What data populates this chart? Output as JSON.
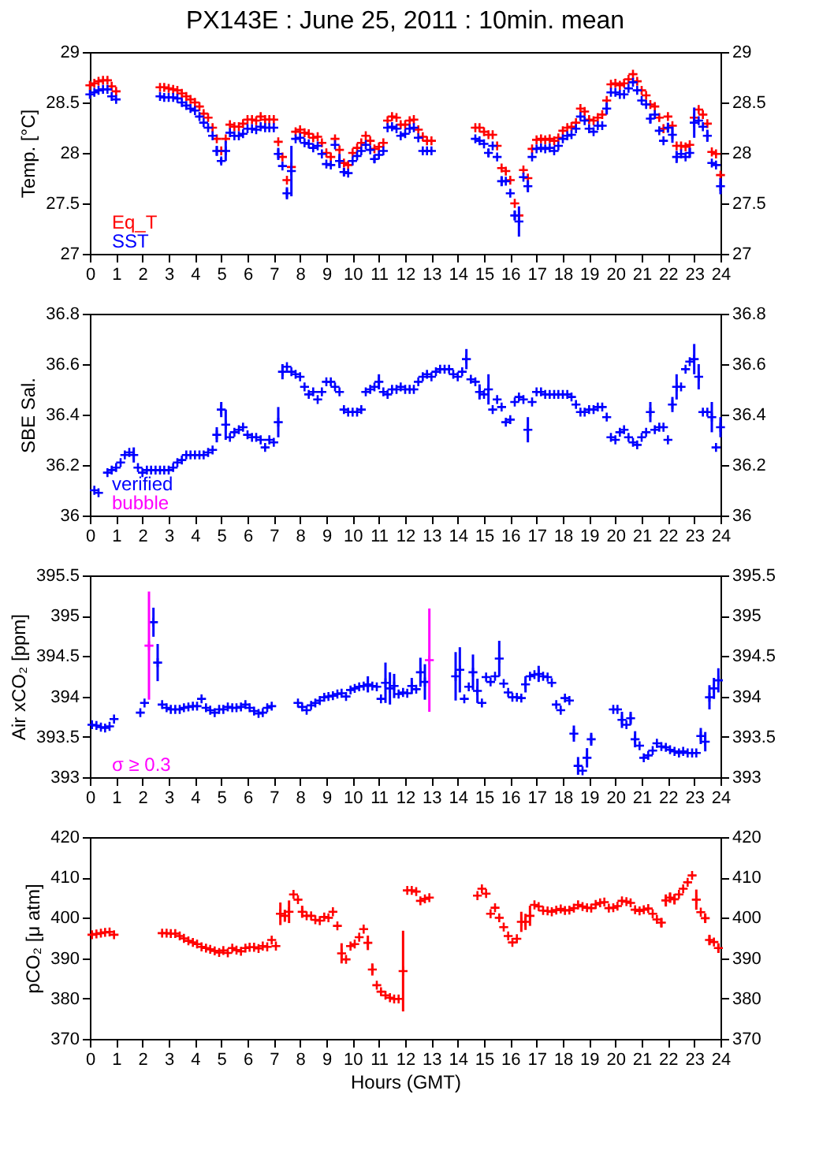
{
  "chart_data": [
    {
      "type": "scatter",
      "title": "PX143E : June 25, 2011 : 10min. mean",
      "ylabel": "Temp. [°C]",
      "xlim": [
        0,
        24
      ],
      "xticks": [
        0,
        1,
        2,
        3,
        4,
        5,
        6,
        7,
        8,
        9,
        10,
        11,
        12,
        13,
        14,
        15,
        16,
        17,
        18,
        19,
        20,
        21,
        22,
        23,
        24
      ],
      "ylim": [
        27,
        29
      ],
      "yticks": [
        27,
        27.5,
        28,
        28.5,
        29
      ],
      "y2lim": [
        27,
        29
      ],
      "y2ticks": [
        27,
        27.5,
        28,
        28.5,
        29
      ],
      "legend": "bottom left",
      "marker": "cross",
      "x": [
        0,
        0.17,
        0.33,
        0.5,
        0.67,
        0.83,
        1,
        2.67,
        2.83,
        3,
        3.17,
        3.33,
        3.5,
        3.67,
        3.83,
        4,
        4.17,
        4.33,
        4.5,
        4.67,
        4.83,
        5,
        5.17,
        5.33,
        5.5,
        5.67,
        5.83,
        6,
        6.17,
        6.33,
        6.5,
        6.67,
        6.83,
        7,
        7.17,
        7.33,
        7.5,
        7.67,
        7.83,
        8,
        8.17,
        8.33,
        8.5,
        8.67,
        8.83,
        9,
        9.17,
        9.33,
        9.5,
        9.67,
        9.83,
        10,
        10.17,
        10.33,
        10.5,
        10.67,
        10.83,
        11,
        11.17,
        11.33,
        11.5,
        11.67,
        11.83,
        12,
        12.17,
        12.33,
        12.5,
        12.67,
        12.83,
        13,
        14.67,
        14.83,
        15,
        15.17,
        15.33,
        15.5,
        15.67,
        15.83,
        16,
        16.17,
        16.33,
        16.5,
        16.67,
        16.83,
        17,
        17.17,
        17.33,
        17.5,
        17.67,
        17.83,
        18,
        18.17,
        18.33,
        18.5,
        18.67,
        18.83,
        19,
        19.17,
        19.33,
        19.5,
        19.67,
        19.83,
        20,
        20.17,
        20.33,
        20.5,
        20.67,
        20.83,
        21,
        21.17,
        21.33,
        21.5,
        21.67,
        21.83,
        22,
        22.17,
        22.33,
        22.5,
        22.67,
        22.83,
        23,
        23.17,
        23.33,
        23.5,
        23.67,
        23.83,
        24
      ],
      "series": [
        {
          "name": "Eq_T",
          "color": "#ff0000",
          "values": [
            28.67,
            28.69,
            28.71,
            28.72,
            28.72,
            28.66,
            28.61,
            28.65,
            28.65,
            28.64,
            28.63,
            28.62,
            28.59,
            28.56,
            28.53,
            28.5,
            28.46,
            28.39,
            28.35,
            28.25,
            28.14,
            28.02,
            28.14,
            28.28,
            28.26,
            28.26,
            28.29,
            28.33,
            28.33,
            28.32,
            28.36,
            28.33,
            28.33,
            28.33,
            28.11,
            27.96,
            27.73,
            27.86,
            28.21,
            28.23,
            28.2,
            28.19,
            28.15,
            28.16,
            28.1,
            28.0,
            27.96,
            28.14,
            28.03,
            27.9,
            27.88,
            28.0,
            28.05,
            28.1,
            28.17,
            28.12,
            28.04,
            28.06,
            28.1,
            28.32,
            28.36,
            28.35,
            28.28,
            28.28,
            28.32,
            28.33,
            28.23,
            28.16,
            28.12,
            28.12,
            28.25,
            28.25,
            28.21,
            28.18,
            28.18,
            28.07,
            27.85,
            27.82,
            27.73,
            27.5,
            27.38,
            27.83,
            27.75,
            28.04,
            28.13,
            28.14,
            28.13,
            28.14,
            28.12,
            28.15,
            28.22,
            28.25,
            28.26,
            28.3,
            28.44,
            28.41,
            28.33,
            28.32,
            28.35,
            28.38,
            28.52,
            28.68,
            28.69,
            28.67,
            28.69,
            28.73,
            28.78,
            28.71,
            28.62,
            28.57,
            28.48,
            28.46,
            28.35,
            28.24,
            28.36,
            28.27,
            28.07,
            28.07,
            28.06,
            28.08,
            28.35,
            28.43,
            28.38,
            28.29,
            28.01,
            27.99,
            27.78
          ]
        },
        {
          "name": "SST",
          "color": "#0000ff",
          "values": [
            28.58,
            28.6,
            28.62,
            28.63,
            28.63,
            28.56,
            28.53,
            28.56,
            28.55,
            28.55,
            28.55,
            28.54,
            28.5,
            28.47,
            28.44,
            28.42,
            28.36,
            28.3,
            28.25,
            28.17,
            28.02,
            27.92,
            28.02,
            28.2,
            28.17,
            28.17,
            28.19,
            28.24,
            28.24,
            28.23,
            28.26,
            28.25,
            28.25,
            28.25,
            27.99,
            27.87,
            27.6,
            27.82,
            28.14,
            28.15,
            28.1,
            28.09,
            28.05,
            28.07,
            27.99,
            27.89,
            27.88,
            28.08,
            27.92,
            27.81,
            27.8,
            27.92,
            27.97,
            28.02,
            28.08,
            28.03,
            27.94,
            27.98,
            28.02,
            28.25,
            28.26,
            28.24,
            28.17,
            28.19,
            28.24,
            28.25,
            28.15,
            28.02,
            28.02,
            28.02,
            28.14,
            28.12,
            28.09,
            28.0,
            28.07,
            27.96,
            27.72,
            27.72,
            27.6,
            27.38,
            27.32,
            27.76,
            27.67,
            27.96,
            28.04,
            28.05,
            28.04,
            28.05,
            28.02,
            28.07,
            28.14,
            28.17,
            28.18,
            28.24,
            28.36,
            28.32,
            28.24,
            28.21,
            28.27,
            28.27,
            28.44,
            28.6,
            28.6,
            28.58,
            28.58,
            28.64,
            28.7,
            28.62,
            28.52,
            28.48,
            28.34,
            28.38,
            28.22,
            28.12,
            28.25,
            28.18,
            27.96,
            27.99,
            27.96,
            28.0,
            28.3,
            28.32,
            28.26,
            28.17,
            27.9,
            27.88,
            27.67
          ],
          "errors": [
            null,
            null,
            null,
            null,
            null,
            null,
            null,
            null,
            null,
            null,
            null,
            null,
            null,
            null,
            null,
            null,
            null,
            null,
            null,
            null,
            0.05,
            0.03,
            0.1,
            null,
            null,
            null,
            null,
            null,
            null,
            null,
            null,
            null,
            null,
            null,
            0.06,
            null,
            0.06,
            0.25,
            null,
            null,
            null,
            null,
            null,
            null,
            null,
            null,
            null,
            null,
            0.07,
            0.04,
            null,
            null,
            null,
            null,
            null,
            null,
            0.04,
            null,
            null,
            null,
            null,
            null,
            null,
            null,
            null,
            null,
            null,
            null,
            null,
            null,
            null,
            null,
            null,
            0.04,
            null,
            null,
            0.05,
            null,
            null,
            0.05,
            0.15,
            null,
            0.06,
            null,
            null,
            null,
            null,
            null,
            null,
            null,
            null,
            null,
            null,
            null,
            null,
            null,
            null,
            null,
            null,
            null,
            0.06,
            null,
            null,
            null,
            null,
            null,
            null,
            null,
            null,
            null,
            0.05,
            null,
            null,
            null,
            0.05,
            0.08,
            0.06,
            null,
            null,
            0.05,
            0.15,
            null,
            null,
            0.06,
            null,
            null,
            0.08
          ]
        }
      ]
    },
    {
      "type": "scatter",
      "ylabel": "SBE Sal.",
      "xlim": [
        0,
        24
      ],
      "xticks": [
        0,
        1,
        2,
        3,
        4,
        5,
        6,
        7,
        8,
        9,
        10,
        11,
        12,
        13,
        14,
        15,
        16,
        17,
        18,
        19,
        20,
        21,
        22,
        23,
        24
      ],
      "ylim": [
        36,
        36.8
      ],
      "yticks": [
        36,
        36.2,
        36.4,
        36.6,
        36.8
      ],
      "y2lim": [
        36,
        36.8
      ],
      "y2ticks": [
        36,
        36.2,
        36.4,
        36.6,
        36.8
      ],
      "legend": "bottom left",
      "marker": "cross",
      "series": [
        {
          "name": "verified",
          "color": "#0000ff",
          "x": [
            0.17,
            0.33,
            0.67,
            0.83,
            1,
            1.17,
            1.33,
            1.5,
            1.67,
            1.83,
            2,
            2.17,
            2.33,
            2.5,
            2.67,
            2.83,
            3,
            3.17,
            3.33,
            3.5,
            3.67,
            3.83,
            4,
            4.17,
            4.33,
            4.5,
            4.67,
            4.83,
            5,
            5.17,
            5.33,
            5.5,
            5.67,
            5.83,
            6,
            6.17,
            6.33,
            6.5,
            6.67,
            6.83,
            7,
            7.17,
            7.33,
            7.5,
            7.67,
            7.83,
            8,
            8.17,
            8.33,
            8.5,
            8.67,
            8.83,
            9,
            9.17,
            9.33,
            9.5,
            9.67,
            9.83,
            10,
            10.17,
            10.33,
            10.5,
            10.67,
            10.83,
            11,
            11.17,
            11.33,
            11.5,
            11.67,
            11.83,
            12,
            12.17,
            12.33,
            12.5,
            12.67,
            12.83,
            13,
            13.17,
            13.33,
            13.5,
            13.67,
            13.83,
            14,
            14.17,
            14.33,
            14.5,
            14.67,
            14.83,
            15,
            15.17,
            15.33,
            15.5,
            15.67,
            15.83,
            16,
            16.17,
            16.33,
            16.5,
            16.67,
            16.83,
            17,
            17.17,
            17.33,
            17.5,
            17.67,
            17.83,
            18,
            18.17,
            18.33,
            18.5,
            18.67,
            18.83,
            19,
            19.17,
            19.33,
            19.5,
            19.67,
            19.83,
            20,
            20.17,
            20.33,
            20.5,
            20.67,
            20.83,
            21,
            21.17,
            21.33,
            21.5,
            21.67,
            21.83,
            22,
            22.17,
            22.33,
            22.5,
            22.67,
            22.83,
            23,
            23.17,
            23.33,
            23.5,
            23.67,
            23.83,
            24
          ],
          "values": [
            36.1,
            36.09,
            36.17,
            36.18,
            36.19,
            36.21,
            36.24,
            36.25,
            36.24,
            36.19,
            36.17,
            36.18,
            36.18,
            36.18,
            36.18,
            36.18,
            36.18,
            36.19,
            36.21,
            36.22,
            36.24,
            36.24,
            36.24,
            36.24,
            36.24,
            36.25,
            36.26,
            36.32,
            36.42,
            36.36,
            36.31,
            36.33,
            36.34,
            36.35,
            36.32,
            36.31,
            36.31,
            36.3,
            36.27,
            36.3,
            36.29,
            36.37,
            36.57,
            36.59,
            36.57,
            36.56,
            36.55,
            36.51,
            36.48,
            36.49,
            36.46,
            36.49,
            36.53,
            36.53,
            36.51,
            36.49,
            36.42,
            36.41,
            36.41,
            36.41,
            36.42,
            36.49,
            36.5,
            36.51,
            36.53,
            36.49,
            36.48,
            36.5,
            36.5,
            36.51,
            36.5,
            36.5,
            36.5,
            36.53,
            36.55,
            36.56,
            36.55,
            36.57,
            36.58,
            36.58,
            36.58,
            36.56,
            36.55,
            36.57,
            36.62,
            36.54,
            36.53,
            36.49,
            36.48,
            36.5,
            36.42,
            36.46,
            36.43,
            36.37,
            36.38,
            36.45,
            36.47,
            36.46,
            36.34,
            36.45,
            36.49,
            36.49,
            36.48,
            36.48,
            36.48,
            36.48,
            36.48,
            36.48,
            36.47,
            36.44,
            36.41,
            36.41,
            36.42,
            36.42,
            36.43,
            36.43,
            36.39,
            36.31,
            36.3,
            36.33,
            36.34,
            36.31,
            36.29,
            36.28,
            36.31,
            36.33,
            36.41,
            36.34,
            36.35,
            36.35,
            36.3,
            36.44,
            36.51,
            36.51,
            36.58,
            36.61,
            36.62,
            36.55,
            36.41,
            36.41,
            36.39,
            36.27,
            36.35
          ],
          "errors": [
            null,
            null,
            null,
            null,
            null,
            null,
            null,
            null,
            0.03,
            null,
            null,
            null,
            null,
            null,
            null,
            null,
            null,
            null,
            null,
            null,
            null,
            null,
            null,
            null,
            null,
            null,
            null,
            0.03,
            0.03,
            0.06,
            null,
            null,
            null,
            null,
            null,
            null,
            null,
            null,
            null,
            null,
            null,
            0.06,
            0.03,
            null,
            null,
            null,
            null,
            null,
            null,
            null,
            null,
            null,
            null,
            null,
            null,
            null,
            null,
            null,
            null,
            null,
            null,
            null,
            null,
            null,
            0.03,
            null,
            null,
            null,
            null,
            null,
            null,
            null,
            null,
            null,
            null,
            null,
            null,
            null,
            null,
            null,
            null,
            null,
            null,
            null,
            0.04,
            null,
            null,
            0.03,
            null,
            0.06,
            null,
            null,
            null,
            null,
            null,
            null,
            null,
            null,
            0.05,
            null,
            null,
            null,
            null,
            null,
            null,
            null,
            null,
            null,
            null,
            null,
            null,
            null,
            null,
            null,
            null,
            null,
            null,
            null,
            null,
            null,
            null,
            null,
            null,
            null,
            null,
            null,
            0.04,
            null,
            null,
            null,
            null,
            0.03,
            0.05,
            null,
            null,
            null,
            0.06,
            0.05,
            null,
            null,
            0.06,
            null,
            0.04
          ]
        },
        {
          "name": "bubble",
          "color": "#ff00ff"
        }
      ]
    },
    {
      "type": "scatter",
      "ylabel": "Air xCO₂ [ppm]",
      "xlim": [
        0,
        24
      ],
      "xticks": [
        0,
        1,
        2,
        3,
        4,
        5,
        6,
        7,
        8,
        9,
        10,
        11,
        12,
        13,
        14,
        15,
        16,
        17,
        18,
        19,
        20,
        21,
        22,
        23,
        24
      ],
      "ylim": [
        393,
        395.5
      ],
      "yticks": [
        393,
        393.5,
        394,
        394.5,
        395,
        395.5
      ],
      "y2lim": [
        393,
        395.5
      ],
      "y2ticks": [
        393,
        393.5,
        394,
        394.5,
        395,
        395.5
      ],
      "legend": "bottom left",
      "marker": "cross",
      "series": [
        {
          "color": "#0000ff",
          "x": [
            0.08,
            0.25,
            0.42,
            0.58,
            0.75,
            0.92,
            1.92,
            2.08,
            2.42,
            2.58,
            2.75,
            2.92,
            3.08,
            3.25,
            3.42,
            3.58,
            3.75,
            3.92,
            4.08,
            4.25,
            4.42,
            4.58,
            4.75,
            4.92,
            5.08,
            5.25,
            5.42,
            5.58,
            5.75,
            5.92,
            6.08,
            6.25,
            6.42,
            6.58,
            6.75,
            6.92,
            7.92,
            8.08,
            8.25,
            8.42,
            8.58,
            8.75,
            8.92,
            9.08,
            9.25,
            9.42,
            9.58,
            9.75,
            9.92,
            10.08,
            10.25,
            10.42,
            10.58,
            10.75,
            10.92,
            11.08,
            11.25,
            11.42,
            11.58,
            11.75,
            11.92,
            12.08,
            12.25,
            12.42,
            12.58,
            12.75,
            13.92,
            14.08,
            14.25,
            14.42,
            14.58,
            14.75,
            14.92,
            15.08,
            15.25,
            15.42,
            15.58,
            15.75,
            15.92,
            16.08,
            16.25,
            16.42,
            16.58,
            16.75,
            16.92,
            17.08,
            17.25,
            17.42,
            17.58,
            17.75,
            17.92,
            18.08,
            18.25,
            18.42,
            18.58,
            18.75,
            18.92,
            19.08,
            19.92,
            20.08,
            20.25,
            20.42,
            20.58,
            20.75,
            20.92,
            21.08,
            21.25,
            21.42,
            21.58,
            21.75,
            21.92,
            22.08,
            22.25,
            22.42,
            22.58,
            22.75,
            22.92,
            23.08,
            23.25,
            23.42,
            23.58,
            23.75,
            23.92
          ],
          "values": [
            393.65,
            393.64,
            393.62,
            393.61,
            393.63,
            393.72,
            393.8,
            393.92,
            394.92,
            394.42,
            393.9,
            393.86,
            393.84,
            393.84,
            393.84,
            393.86,
            393.87,
            393.88,
            393.88,
            393.97,
            393.86,
            393.83,
            393.8,
            393.84,
            393.84,
            393.87,
            393.86,
            393.86,
            393.87,
            393.9,
            393.86,
            393.82,
            393.79,
            393.8,
            393.86,
            393.88,
            393.92,
            393.87,
            393.83,
            393.89,
            393.92,
            393.95,
            393.99,
            394.0,
            394.01,
            394.03,
            394.04,
            394.0,
            394.08,
            394.1,
            394.12,
            394.13,
            394.15,
            394.13,
            394.12,
            393.97,
            394.17,
            394.1,
            394.13,
            394.03,
            394.05,
            394.04,
            394.13,
            394.09,
            394.3,
            394.18,
            394.25,
            394.33,
            393.97,
            394.12,
            394.3,
            394.07,
            393.92,
            394.24,
            394.18,
            394.25,
            394.47,
            394.16,
            394.05,
            393.99,
            393.99,
            393.98,
            394.15,
            394.25,
            394.27,
            394.28,
            394.25,
            394.24,
            394.17,
            393.9,
            393.83,
            393.98,
            393.95,
            393.54,
            393.14,
            393.08,
            393.24,
            393.47,
            393.84,
            393.84,
            393.71,
            393.65,
            393.73,
            393.47,
            393.39,
            393.24,
            393.27,
            393.33,
            393.42,
            393.38,
            393.37,
            393.34,
            393.32,
            393.3,
            393.32,
            393.3,
            393.3,
            393.3,
            393.51,
            393.44,
            393.99,
            394.1,
            394.2
          ],
          "errors": [
            null,
            null,
            null,
            null,
            null,
            null,
            null,
            null,
            0.18,
            0.23,
            null,
            null,
            null,
            null,
            null,
            null,
            null,
            null,
            null,
            null,
            null,
            null,
            null,
            null,
            null,
            null,
            null,
            null,
            null,
            null,
            null,
            null,
            null,
            null,
            null,
            null,
            null,
            null,
            null,
            null,
            null,
            null,
            null,
            null,
            null,
            null,
            null,
            null,
            null,
            null,
            null,
            null,
            0.1,
            null,
            null,
            null,
            0.25,
            0.2,
            0.15,
            null,
            null,
            null,
            0.1,
            null,
            0.18,
            0.22,
            0.3,
            0.28,
            null,
            null,
            0.22,
            0.15,
            null,
            null,
            null,
            null,
            0.22,
            null,
            null,
            null,
            null,
            null,
            0.1,
            null,
            null,
            0.1,
            null,
            null,
            null,
            null,
            null,
            null,
            null,
            0.1,
            0.11,
            null,
            0.12,
            0.08,
            null,
            null,
            0.1,
            null,
            0.08,
            0.1,
            null,
            null,
            null,
            null,
            null,
            null,
            null,
            null,
            null,
            null,
            null,
            null,
            null,
            null,
            0.1,
            0.12,
            0.15,
            0.13,
            0.15
          ]
        },
        {
          "name": "σ ≥ 0.3",
          "color": "#ff00ff",
          "x": [
            2.25,
            12.92
          ],
          "values": [
            394.63,
            394.45
          ],
          "errors": [
            0.67,
            0.64
          ]
        }
      ]
    },
    {
      "type": "scatter",
      "xlabel": "Hours (GMT)",
      "ylabel": "pCO₂ [μ atm]",
      "xlim": [
        0,
        24
      ],
      "xticks": [
        0,
        1,
        2,
        3,
        4,
        5,
        6,
        7,
        8,
        9,
        10,
        11,
        12,
        13,
        14,
        15,
        16,
        17,
        18,
        19,
        20,
        21,
        22,
        23,
        24
      ],
      "ylim": [
        370,
        420
      ],
      "yticks": [
        370,
        380,
        390,
        400,
        410,
        420
      ],
      "y2lim": [
        370,
        420
      ],
      "y2ticks": [
        370,
        380,
        390,
        400,
        410,
        420
      ],
      "marker": "cross",
      "x": [
        0.08,
        0.25,
        0.42,
        0.58,
        0.75,
        0.92,
        2.75,
        2.92,
        3.08,
        3.25,
        3.42,
        3.58,
        3.75,
        3.92,
        4.08,
        4.25,
        4.42,
        4.58,
        4.75,
        4.92,
        5.08,
        5.25,
        5.42,
        5.58,
        5.75,
        5.92,
        6.08,
        6.25,
        6.42,
        6.58,
        6.75,
        6.92,
        7.08,
        7.25,
        7.42,
        7.58,
        7.75,
        7.92,
        8.08,
        8.25,
        8.42,
        8.58,
        8.75,
        8.92,
        9.08,
        9.25,
        9.42,
        9.58,
        9.75,
        9.92,
        10.08,
        10.25,
        10.42,
        10.58,
        10.75,
        10.92,
        11.08,
        11.25,
        11.42,
        11.58,
        11.75,
        11.92,
        12.08,
        12.25,
        12.42,
        12.58,
        12.75,
        12.92,
        14.75,
        14.92,
        15.08,
        15.25,
        15.42,
        15.58,
        15.75,
        15.92,
        16.08,
        16.25,
        16.42,
        16.58,
        16.75,
        16.92,
        17.08,
        17.25,
        17.42,
        17.58,
        17.75,
        17.92,
        18.08,
        18.25,
        18.42,
        18.58,
        18.75,
        18.92,
        19.08,
        19.25,
        19.42,
        19.58,
        19.75,
        19.92,
        20.08,
        20.25,
        20.42,
        20.58,
        20.75,
        20.92,
        21.08,
        21.25,
        21.42,
        21.58,
        21.75,
        21.92,
        22.08,
        22.25,
        22.42,
        22.58,
        22.75,
        22.92,
        23.08,
        23.25,
        23.42,
        23.58,
        23.75,
        23.92
      ],
      "series": [
        {
          "color": "#ff0000",
          "values": [
            395.8,
            396,
            396.2,
            396.4,
            396.5,
            395.8,
            396.2,
            396.2,
            396.1,
            396.1,
            395.5,
            394.9,
            394.3,
            393.9,
            393.5,
            392.8,
            392.5,
            392.2,
            391.8,
            391.4,
            391.9,
            391.3,
            392.5,
            392.0,
            391.7,
            392.5,
            392.7,
            392.7,
            392.4,
            393.0,
            392.8,
            394.5,
            393.0,
            401,
            400.5,
            401.5,
            405.8,
            404.5,
            401.5,
            400.5,
            400.5,
            399.5,
            399.3,
            400.2,
            400.0,
            401.5,
            398,
            391.2,
            389.7,
            393,
            393.5,
            395.2,
            397.2,
            393.8,
            387.2,
            383.3,
            381.7,
            380.8,
            380.2,
            379.9,
            379.9,
            386.8,
            406.8,
            406.8,
            406.5,
            404.2,
            404.7,
            405,
            405.5,
            407.2,
            406,
            401,
            402.5,
            400,
            397.7,
            395.5,
            393.9,
            394.8,
            399,
            399,
            400.5,
            403.2,
            402.8,
            401.8,
            401.7,
            401.5,
            401.9,
            402.2,
            401.8,
            401.9,
            402.4,
            403.2,
            402.8,
            402.5,
            402.4,
            403.3,
            403.7,
            403.9,
            402.4,
            402.5,
            402.9,
            404.2,
            404,
            403.7,
            402,
            401.7,
            402,
            402.3,
            401,
            399.6,
            398.8,
            404.3,
            405,
            404.6,
            405.8,
            407.2,
            408.8,
            410.5,
            404.5,
            401.4,
            399.9,
            394.5,
            394,
            392.5
          ],
          "errors": [
            null,
            null,
            null,
            null,
            null,
            null,
            null,
            null,
            null,
            null,
            null,
            null,
            null,
            null,
            null,
            null,
            null,
            null,
            null,
            null,
            null,
            null,
            null,
            null,
            null,
            null,
            null,
            null,
            null,
            null,
            null,
            null,
            null,
            2.8,
            1.5,
            2.8,
            null,
            null,
            1.5,
            null,
            null,
            null,
            null,
            null,
            null,
            null,
            null,
            2.5,
            null,
            null,
            null,
            null,
            null,
            1.8,
            1.5,
            null,
            null,
            null,
            null,
            null,
            null,
            10,
            null,
            null,
            null,
            null,
            null,
            null,
            null,
            null,
            null,
            null,
            null,
            null,
            null,
            null,
            null,
            null,
            2.5,
            2,
            2.5,
            null,
            null,
            null,
            null,
            null,
            null,
            null,
            null,
            null,
            null,
            null,
            null,
            null,
            null,
            null,
            null,
            null,
            null,
            null,
            null,
            null,
            null,
            null,
            null,
            null,
            null,
            null,
            null,
            null,
            1.2,
            1.5,
            1.3,
            1.3,
            null,
            null,
            null,
            null,
            2.5,
            null,
            1.2,
            1.3,
            null,
            1.2
          ]
        }
      ]
    }
  ]
}
